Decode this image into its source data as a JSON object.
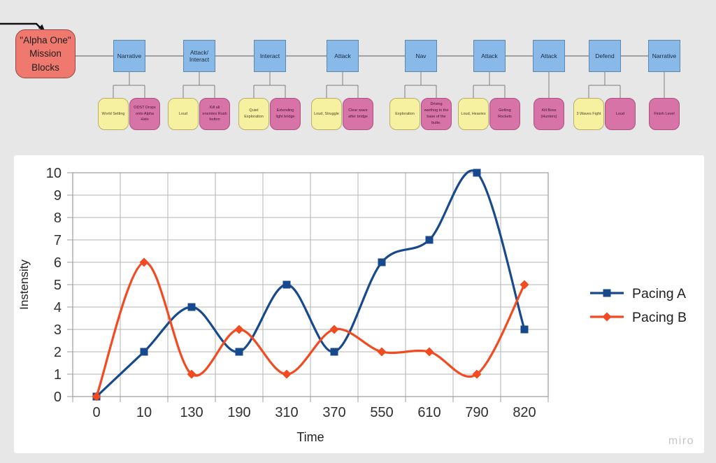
{
  "watermark": "miro",
  "flowchart": {
    "root": {
      "label": "\"Alpha One\" Mission Blocks"
    },
    "groups": [
      {
        "label": "Narrative",
        "children": [
          {
            "text": "World Setting",
            "color": "yellow"
          },
          {
            "text": "ODST Drops onto Alpha Halo",
            "color": "pink"
          }
        ]
      },
      {
        "label": "Attack/\nInteract",
        "children": [
          {
            "text": "Loud",
            "color": "yellow"
          },
          {
            "text": "Kill all enemies Rush button",
            "color": "pink"
          }
        ]
      },
      {
        "label": "Interact",
        "children": [
          {
            "text": "Quiet Exploration",
            "color": "yellow"
          },
          {
            "text": "Extending light bridge",
            "color": "pink"
          }
        ]
      },
      {
        "label": "Attack",
        "children": [
          {
            "text": "Loud, Struggle",
            "color": "yellow"
          },
          {
            "text": "Clear wave after bridge",
            "color": "pink"
          }
        ]
      },
      {
        "label": "Nav",
        "children": [
          {
            "text": "Exploration",
            "color": "yellow"
          },
          {
            "text": "Driving warthog to the base of the butte.",
            "color": "pink"
          }
        ]
      },
      {
        "label": "Attack",
        "children": [
          {
            "text": "Loud, Heavies",
            "color": "yellow"
          },
          {
            "text": "Getting Rockets",
            "color": "pink"
          }
        ]
      },
      {
        "label": "Attack",
        "children": [
          {
            "text": "Kill Boss (Hunters)",
            "color": "pink"
          }
        ]
      },
      {
        "label": "Defend",
        "children": [
          {
            "text": "3 Waves Fight",
            "color": "yellow"
          },
          {
            "text": "Loud",
            "color": "pink"
          }
        ]
      },
      {
        "label": "Narrative",
        "children": [
          {
            "text": "Finish Level",
            "color": "pink"
          }
        ]
      }
    ]
  },
  "chart_data": {
    "type": "line",
    "categories": [
      "0",
      "10",
      "130",
      "190",
      "310",
      "370",
      "550",
      "610",
      "790",
      "820"
    ],
    "series": [
      {
        "name": "Pacing A",
        "values": [
          0,
          2,
          4,
          2,
          5,
          2,
          6,
          7,
          10,
          3
        ],
        "color": "#17498c",
        "marker": "square"
      },
      {
        "name": "Pacing B",
        "values": [
          0,
          6,
          1,
          3,
          1,
          3,
          2,
          2,
          1,
          5
        ],
        "color": "#f24a21",
        "marker": "diamond"
      }
    ],
    "xlabel": "Time",
    "ylabel": "Instensity",
    "ylim": [
      0,
      10
    ],
    "y_ticks": [
      "0",
      "1",
      "2",
      "3",
      "4",
      "5",
      "6",
      "7",
      "8",
      "9",
      "10"
    ],
    "grid": true,
    "legend_position": "right",
    "smooth": true
  },
  "colors": {
    "background": "#e8e7e7",
    "panel": "#ffffff",
    "root_fill": "#f0796f",
    "root_border": "#8f4a42",
    "stage_fill": "#88b9e8",
    "stage_border": "#5b88ab",
    "yellow_fill": "#f5f1a0",
    "pink_fill": "#d873a8",
    "grid": "#b3b3b3",
    "axis": "#9c9c9c",
    "tick_text": "#2f2f2f",
    "connector": "#7d7d7d"
  }
}
